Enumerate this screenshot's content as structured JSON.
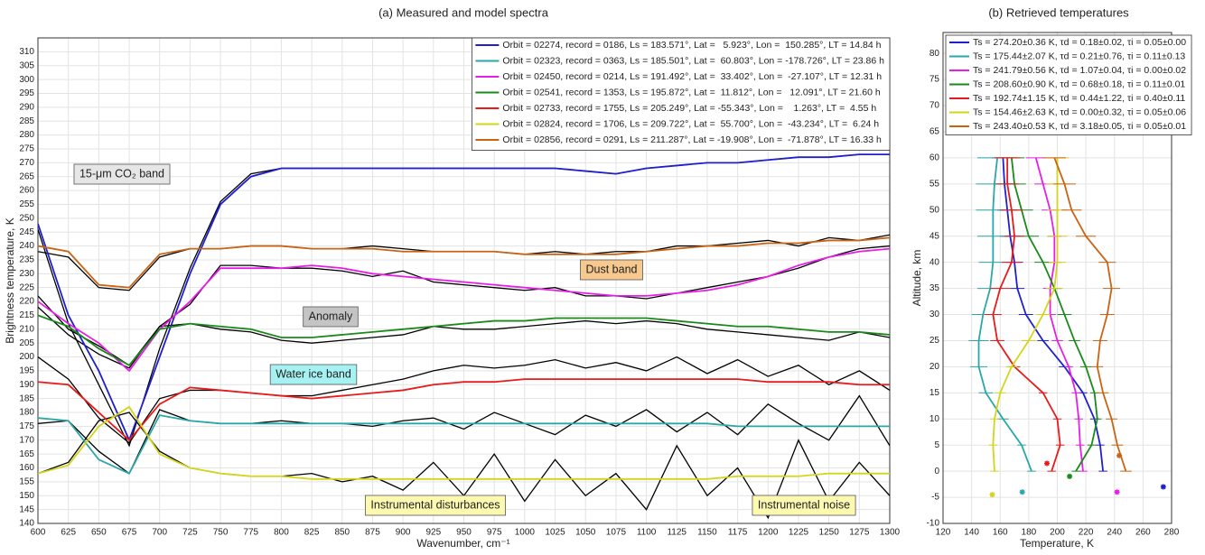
{
  "chart_data": [
    {
      "type": "line",
      "title": "(a) Measured and model spectra",
      "xlabel": "Wavenumber, cm⁻¹",
      "ylabel": "Brightness temperature, K",
      "x": [
        600,
        625,
        650,
        675,
        700,
        725,
        750,
        775,
        800,
        825,
        850,
        875,
        900,
        925,
        950,
        975,
        1000,
        1025,
        1050,
        1075,
        1100,
        1125,
        1150,
        1175,
        1200,
        1225,
        1250,
        1275,
        1300
      ],
      "xlim": [
        600,
        1300
      ],
      "xticks": [
        600,
        625,
        650,
        675,
        700,
        725,
        750,
        775,
        800,
        825,
        850,
        875,
        900,
        925,
        950,
        975,
        1000,
        1025,
        1050,
        1075,
        1100,
        1125,
        1150,
        1175,
        1200,
        1225,
        1250,
        1275,
        1300
      ],
      "ylim": [
        140,
        315
      ],
      "yticks": [
        140,
        145,
        150,
        155,
        160,
        165,
        170,
        175,
        180,
        185,
        190,
        195,
        200,
        205,
        210,
        215,
        220,
        225,
        230,
        235,
        240,
        245,
        250,
        255,
        260,
        265,
        270,
        275,
        280,
        285,
        290,
        295,
        300,
        305,
        310
      ],
      "grid": true,
      "legend": "upper right",
      "series": [
        {
          "name": "Orbit = 02274, record = 0186, Ls = 183.571°, Lat =   5.923°, Lon =  150.285°, LT = 14.84 h",
          "color": "#1f1fd0",
          "values": [
            248,
            215,
            195,
            170,
            200,
            230,
            255,
            265,
            268,
            268,
            268,
            268,
            268,
            268,
            268,
            268,
            268,
            268,
            267,
            266,
            268,
            269,
            270,
            270,
            271,
            272,
            272,
            273,
            273
          ]
        },
        {
          "name": "Orbit = 02323, record = 0363, Ls = 185.501°, Lat =  60.803°, Lon = -178.726°, LT = 23.86 h",
          "color": "#2aa7a7",
          "values": [
            178,
            177,
            163,
            158,
            179,
            177,
            176,
            176,
            176,
            176,
            176,
            176,
            176,
            176,
            176,
            176,
            176,
            176,
            176,
            176,
            176,
            176,
            176,
            175,
            175,
            175,
            175,
            175,
            175
          ]
        },
        {
          "name": "Orbit = 02450, record = 0214, Ls = 191.492°, Lat =  33.402°, Lon =  -27.107°, LT = 12.31 h",
          "color": "#e81ee8",
          "values": [
            220,
            212,
            205,
            195,
            210,
            220,
            232,
            232,
            232,
            233,
            232,
            230,
            229,
            228,
            227,
            226,
            225,
            224,
            223,
            222,
            222,
            223,
            224,
            226,
            229,
            233,
            236,
            238,
            239
          ]
        },
        {
          "name": "Orbit = 02541, record = 1353, Ls = 195.872°, Lat =  11.812°, Lon =   12.091°, LT = 21.60 h",
          "color": "#1a8a1a",
          "values": [
            215,
            211,
            203,
            197,
            210,
            212,
            211,
            210,
            207,
            207,
            208,
            209,
            210,
            211,
            212,
            213,
            213,
            214,
            214,
            214,
            214,
            213,
            212,
            211,
            211,
            210,
            209,
            209,
            208
          ]
        },
        {
          "name": "Orbit = 02733, record = 1755, Ls = 205.249°, Lat = -55.343°, Lon =    1.263°, LT =  4.55 h",
          "color": "#e81a1a",
          "values": [
            191,
            190,
            180,
            170,
            183,
            189,
            188,
            187,
            186,
            185,
            186,
            187,
            188,
            190,
            191,
            191,
            192,
            192,
            192,
            192,
            192,
            192,
            192,
            192,
            191,
            191,
            191,
            190,
            190
          ]
        },
        {
          "name": "Orbit = 02824, record = 1706, Ls = 209.722°, Lat =  55.700°, Lon =  -43.234°, LT =  6.24 h",
          "color": "#d4d41a",
          "values": [
            158,
            161,
            175,
            182,
            165,
            160,
            158,
            157,
            157,
            156,
            156,
            156,
            156,
            156,
            156,
            156,
            156,
            156,
            156,
            156,
            156,
            156,
            156,
            157,
            157,
            157,
            158,
            158,
            158
          ]
        },
        {
          "name": "Orbit = 02856, record = 0291, Ls = 211.287°, Lat = -19.908°, Lon =  -71.878°, LT = 16.33 h",
          "color": "#c86414",
          "values": [
            240,
            238,
            226,
            225,
            237,
            239,
            239,
            240,
            240,
            239,
            239,
            239,
            238,
            238,
            238,
            238,
            237,
            237,
            237,
            237,
            238,
            239,
            240,
            240,
            241,
            241,
            242,
            242,
            243
          ]
        }
      ],
      "measured_color": "#000000",
      "measured": [
        [
          246,
          212,
          190,
          168,
          203,
          232,
          256,
          266,
          268,
          268,
          268,
          268,
          268,
          268,
          268,
          268,
          268,
          268,
          267,
          266,
          268,
          269,
          270,
          270,
          271,
          272,
          272,
          273,
          273
        ],
        [
          176,
          177,
          166,
          158,
          181,
          177,
          176,
          176,
          177,
          176,
          176,
          175,
          177,
          178,
          174,
          180,
          176,
          172,
          179,
          175,
          181,
          173,
          180,
          172,
          183,
          176,
          170,
          186,
          168
        ],
        [
          222,
          210,
          204,
          197,
          211,
          219,
          233,
          233,
          232,
          232,
          231,
          229,
          231,
          227,
          226,
          225,
          224,
          225,
          222,
          222,
          221,
          223,
          225,
          227,
          229,
          232,
          236,
          239,
          240
        ],
        [
          218,
          208,
          201,
          196,
          211,
          212,
          210,
          209,
          206,
          205,
          206,
          207,
          208,
          211,
          210,
          210,
          211,
          212,
          213,
          212,
          213,
          212,
          210,
          209,
          208,
          207,
          206,
          209,
          207
        ],
        [
          200,
          192,
          178,
          169,
          185,
          188,
          188,
          187,
          186,
          186,
          188,
          190,
          192,
          195,
          197,
          196,
          197,
          199,
          196,
          198,
          195,
          200,
          194,
          199,
          193,
          197,
          190,
          195,
          188
        ],
        [
          158,
          162,
          177,
          180,
          166,
          160,
          158,
          157,
          157,
          158,
          155,
          157,
          152,
          162,
          150,
          165,
          148,
          163,
          150,
          158,
          145,
          168,
          150,
          160,
          142,
          170,
          148,
          162,
          150
        ],
        [
          238,
          236,
          225,
          224,
          236,
          239,
          239,
          240,
          240,
          239,
          239,
          240,
          239,
          238,
          238,
          238,
          237,
          238,
          237,
          238,
          238,
          240,
          240,
          241,
          242,
          240,
          243,
          242,
          244
        ]
      ],
      "annotations": [
        {
          "text": "15-μm CO₂ band",
          "color": "#e6e6e6"
        },
        {
          "text": "Dust band",
          "color": "#f7c98e"
        },
        {
          "text": "Anomaly",
          "color": "#c4c4c4"
        },
        {
          "text": "Water ice band",
          "color": "#a6f2f2"
        },
        {
          "text": "Instrumental disturbances",
          "color": "#fdf9b0"
        },
        {
          "text": "Instrumental noise",
          "color": "#fdf9b0"
        }
      ]
    },
    {
      "type": "profile",
      "title": "(b) Retrieved temperatures",
      "xlabel": "Temperature, K",
      "ylabel": "Altitude, km",
      "y": [
        60,
        55,
        50,
        45,
        40,
        35,
        30,
        25,
        20,
        15,
        10,
        5,
        0
      ],
      "xlim": [
        120,
        280
      ],
      "xticks": [
        120,
        140,
        160,
        180,
        200,
        220,
        240,
        260,
        280
      ],
      "ylim": [
        -10,
        84
      ],
      "yticks": [
        -10,
        -5,
        0,
        5,
        10,
        15,
        20,
        25,
        30,
        35,
        40,
        45,
        50,
        55,
        60,
        65,
        70,
        75,
        80
      ],
      "grid": true,
      "legend": "upper left",
      "series": [
        {
          "name": "Ts = 274.20±0.36 K, τd = 0.18±0.02, τi = 0.05±0.00",
          "color": "#1f1fd0",
          "values": [
            162,
            163,
            165,
            167,
            170,
            172,
            178,
            190,
            205,
            218,
            226,
            230,
            232
          ],
          "errors": [
            8,
            8,
            7,
            7,
            6,
            5,
            5,
            4,
            4,
            3,
            3,
            3,
            3
          ],
          "surface_temperature": 274.2,
          "surface_altitude": -3
        },
        {
          "name": "Ts = 175.44±2.07 K, τd = 0.21±0.76, τi = 0.11±0.13",
          "color": "#2aa7a7",
          "values": [
            158,
            156,
            155,
            155,
            155,
            153,
            148,
            145,
            145,
            150,
            162,
            175,
            182
          ],
          "errors": [
            14,
            13,
            12,
            11,
            10,
            9,
            8,
            7,
            6,
            5,
            4,
            3,
            3
          ],
          "surface_temperature": 175.44,
          "surface_altitude": -4
        },
        {
          "name": "Ts = 241.79±0.56 K, τd = 1.07±0.04, τi = 0.00±0.02",
          "color": "#e81ee8",
          "values": [
            185,
            190,
            195,
            198,
            198,
            195,
            195,
            200,
            208,
            213,
            215,
            216,
            218
          ],
          "errors": [
            7,
            6,
            6,
            5,
            5,
            5,
            4,
            4,
            3,
            3,
            3,
            3,
            3
          ],
          "surface_temperature": 241.79,
          "surface_altitude": -4
        },
        {
          "name": "Ts = 208.60±0.90 K, τd = 0.68±0.18, τi = 0.11±0.01",
          "color": "#1a8a1a",
          "values": [
            168,
            170,
            175,
            180,
            190,
            198,
            205,
            212,
            220,
            226,
            228,
            224,
            213
          ],
          "errors": [
            9,
            8,
            8,
            7,
            6,
            5,
            5,
            4,
            4,
            3,
            3,
            3,
            3
          ],
          "surface_temperature": 208.6,
          "surface_altitude": -1
        },
        {
          "name": "Ts = 192.74±1.15 K, τd = 0.44±1.22, τi = 0.40±0.11",
          "color": "#e81a1a",
          "values": [
            165,
            165,
            168,
            170,
            168,
            160,
            155,
            158,
            170,
            190,
            200,
            202,
            196
          ],
          "errors": [
            9,
            8,
            8,
            7,
            7,
            7,
            6,
            5,
            4,
            3,
            3,
            3,
            3
          ],
          "surface_temperature": 192.74,
          "surface_altitude": 1.5
        },
        {
          "name": "Ts = 154.46±2.63 K, τd = 0.00±0.32, τi = 0.05±0.06",
          "color": "#d4d41a",
          "values": [
            200,
            200,
            200,
            200,
            200,
            198,
            190,
            180,
            168,
            160,
            156,
            155,
            156
          ],
          "errors": [
            8,
            8,
            7,
            7,
            6,
            6,
            5,
            5,
            4,
            4,
            3,
            3,
            3
          ],
          "surface_temperature": 154.46,
          "surface_altitude": -4.5
        },
        {
          "name": "Ts = 243.40±0.53 K, τd = 3.18±0.05, τi = 0.05±0.01",
          "color": "#c86414",
          "values": [
            198,
            205,
            210,
            220,
            235,
            238,
            235,
            230,
            228,
            232,
            238,
            242,
            248
          ],
          "errors": [
            8,
            8,
            7,
            7,
            6,
            6,
            5,
            5,
            4,
            4,
            4,
            4,
            4
          ],
          "surface_temperature": 243.4,
          "surface_altitude": 3
        }
      ]
    }
  ]
}
